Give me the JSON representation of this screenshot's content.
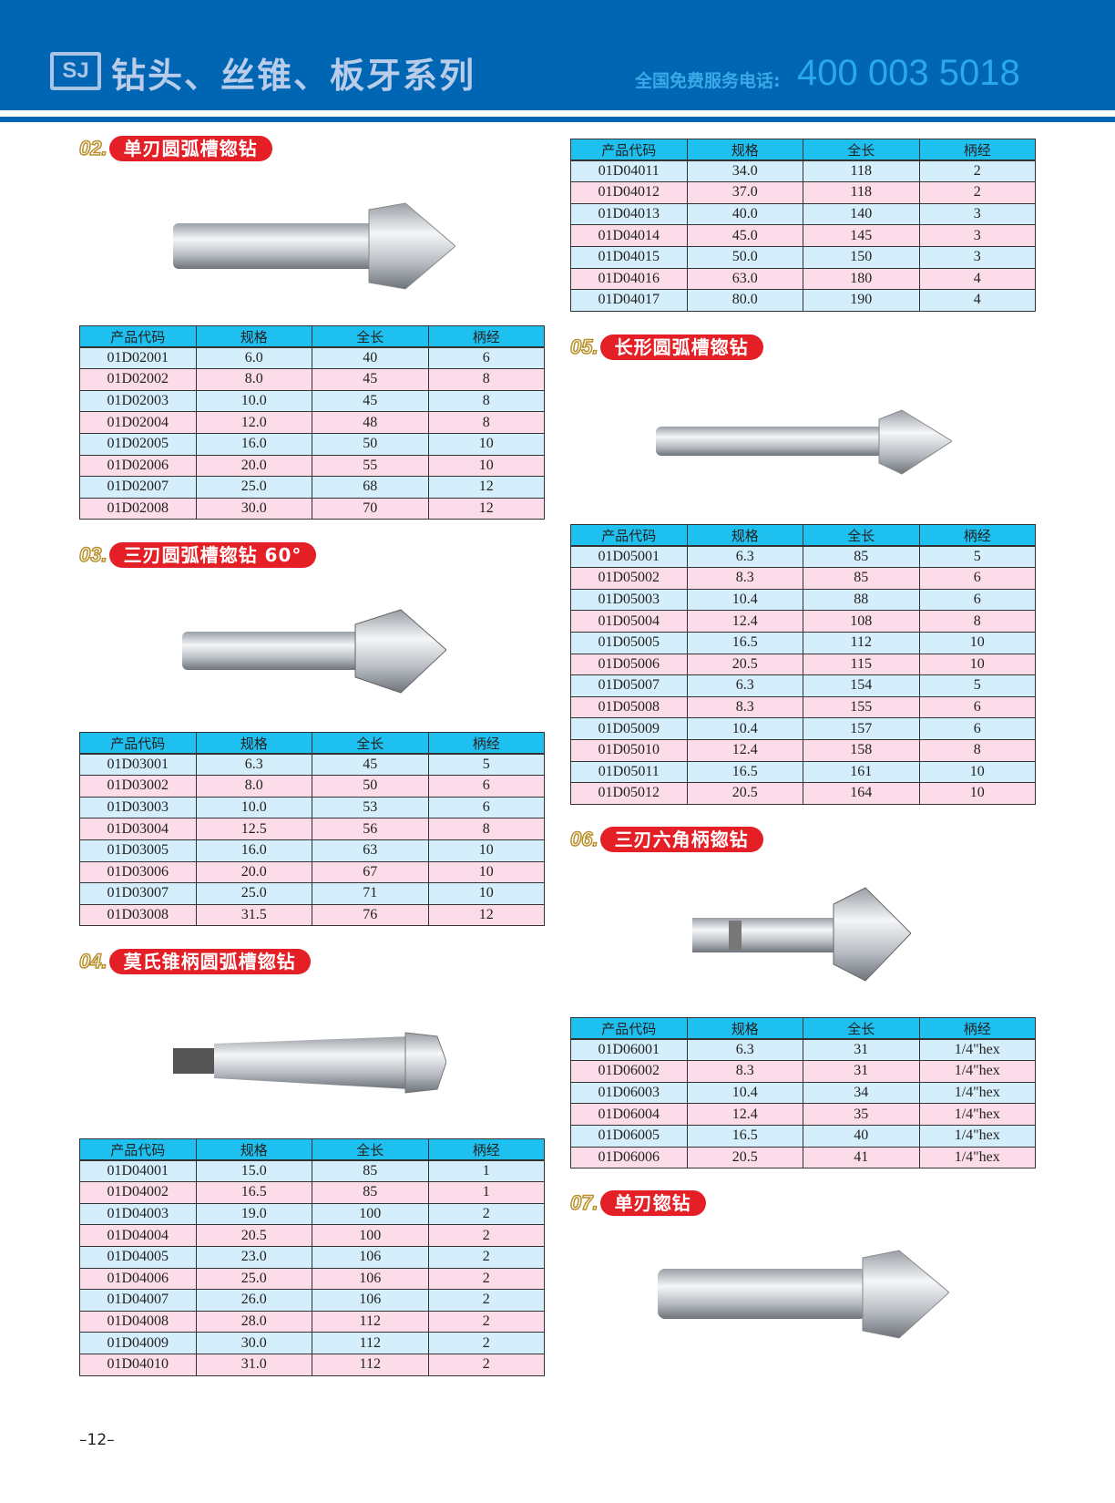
{
  "header": {
    "logo": "SJ",
    "title": "钻头、丝锥、板牙系列",
    "phone_label": "全国免费服务电话:",
    "phone": "400 003 5018"
  },
  "columns": [
    "产品代码",
    "规格",
    "全长",
    "柄经"
  ],
  "colors": {
    "header_blue": "#0066b3",
    "table_header": "#1ec0f0",
    "row_blue": "#d4eefb",
    "row_pink": "#fbdce8",
    "label_red": "#e41f26"
  },
  "sections": [
    {
      "num": "02.",
      "label": "单刃圆弧槽锪钻"
    },
    {
      "num": "03.",
      "label": "三刃圆弧槽锪钻 60°"
    },
    {
      "num": "04.",
      "label": "莫氏锥柄圆弧槽锪钻"
    },
    {
      "num": "05.",
      "label": "长形圆弧槽锪钻"
    },
    {
      "num": "06.",
      "label": "三刃六角柄锪钻"
    },
    {
      "num": "07.",
      "label": "单刃锪钻"
    }
  ],
  "tables": {
    "t02": [
      [
        "01D02001",
        "6.0",
        "40",
        "6"
      ],
      [
        "01D02002",
        "8.0",
        "45",
        "8"
      ],
      [
        "01D02003",
        "10.0",
        "45",
        "8"
      ],
      [
        "01D02004",
        "12.0",
        "48",
        "8"
      ],
      [
        "01D02005",
        "16.0",
        "50",
        "10"
      ],
      [
        "01D02006",
        "20.0",
        "55",
        "10"
      ],
      [
        "01D02007",
        "25.0",
        "68",
        "12"
      ],
      [
        "01D02008",
        "30.0",
        "70",
        "12"
      ]
    ],
    "t03": [
      [
        "01D03001",
        "6.3",
        "45",
        "5"
      ],
      [
        "01D03002",
        "8.0",
        "50",
        "6"
      ],
      [
        "01D03003",
        "10.0",
        "53",
        "6"
      ],
      [
        "01D03004",
        "12.5",
        "56",
        "8"
      ],
      [
        "01D03005",
        "16.0",
        "63",
        "10"
      ],
      [
        "01D03006",
        "20.0",
        "67",
        "10"
      ],
      [
        "01D03007",
        "25.0",
        "71",
        "10"
      ],
      [
        "01D03008",
        "31.5",
        "76",
        "12"
      ]
    ],
    "t04a": [
      [
        "01D04001",
        "15.0",
        "85",
        "1"
      ],
      [
        "01D04002",
        "16.5",
        "85",
        "1"
      ],
      [
        "01D04003",
        "19.0",
        "100",
        "2"
      ],
      [
        "01D04004",
        "20.5",
        "100",
        "2"
      ],
      [
        "01D04005",
        "23.0",
        "106",
        "2"
      ],
      [
        "01D04006",
        "25.0",
        "106",
        "2"
      ],
      [
        "01D04007",
        "26.0",
        "106",
        "2"
      ],
      [
        "01D04008",
        "28.0",
        "112",
        "2"
      ],
      [
        "01D04009",
        "30.0",
        "112",
        "2"
      ],
      [
        "01D04010",
        "31.0",
        "112",
        "2"
      ]
    ],
    "t04b": [
      [
        "01D04011",
        "34.0",
        "118",
        "2"
      ],
      [
        "01D04012",
        "37.0",
        "118",
        "2"
      ],
      [
        "01D04013",
        "40.0",
        "140",
        "3"
      ],
      [
        "01D04014",
        "45.0",
        "145",
        "3"
      ],
      [
        "01D04015",
        "50.0",
        "150",
        "3"
      ],
      [
        "01D04016",
        "63.0",
        "180",
        "4"
      ],
      [
        "01D04017",
        "80.0",
        "190",
        "4"
      ]
    ],
    "t05": [
      [
        "01D05001",
        "6.3",
        "85",
        "5"
      ],
      [
        "01D05002",
        "8.3",
        "85",
        "6"
      ],
      [
        "01D05003",
        "10.4",
        "88",
        "6"
      ],
      [
        "01D05004",
        "12.4",
        "108",
        "8"
      ],
      [
        "01D05005",
        "16.5",
        "112",
        "10"
      ],
      [
        "01D05006",
        "20.5",
        "115",
        "10"
      ],
      [
        "01D05007",
        "6.3",
        "154",
        "5"
      ],
      [
        "01D05008",
        "8.3",
        "155",
        "6"
      ],
      [
        "01D05009",
        "10.4",
        "157",
        "6"
      ],
      [
        "01D05010",
        "12.4",
        "158",
        "8"
      ],
      [
        "01D05011",
        "16.5",
        "161",
        "10"
      ],
      [
        "01D05012",
        "20.5",
        "164",
        "10"
      ]
    ],
    "t06": [
      [
        "01D06001",
        "6.3",
        "31",
        "1/4\"hex"
      ],
      [
        "01D06002",
        "8.3",
        "31",
        "1/4\"hex"
      ],
      [
        "01D06003",
        "10.4",
        "34",
        "1/4\"hex"
      ],
      [
        "01D06004",
        "12.4",
        "35",
        "1/4\"hex"
      ],
      [
        "01D06005",
        "16.5",
        "40",
        "1/4\"hex"
      ],
      [
        "01D06006",
        "20.5",
        "41",
        "1/4\"hex"
      ]
    ]
  },
  "page_number": "–12–"
}
